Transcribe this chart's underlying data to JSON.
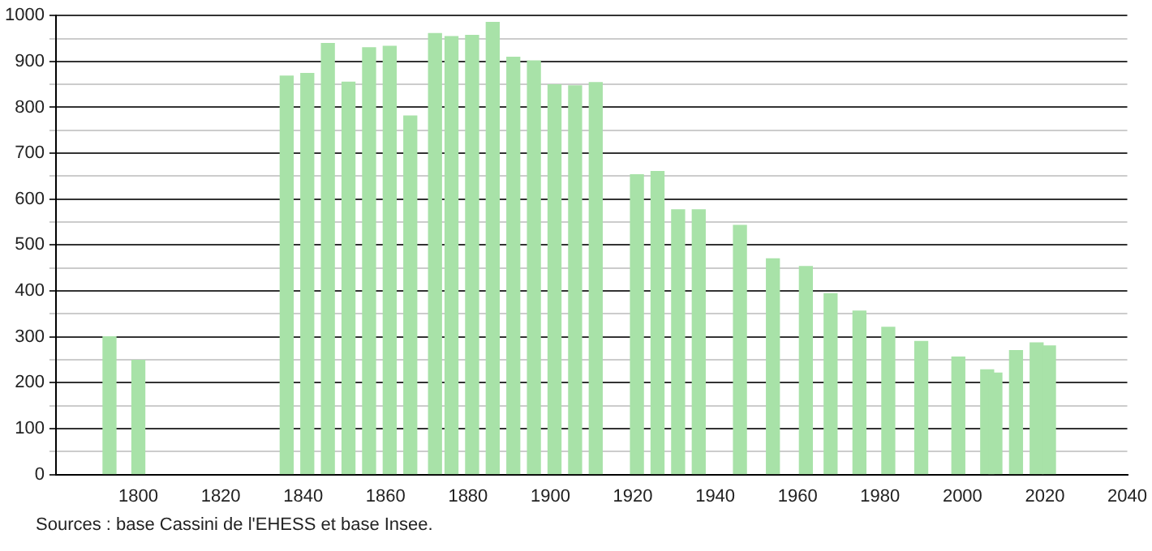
{
  "chart_data": {
    "type": "bar",
    "x": [
      1793,
      1800,
      1836,
      1841,
      1846,
      1851,
      1856,
      1861,
      1866,
      1872,
      1876,
      1881,
      1886,
      1891,
      1896,
      1901,
      1906,
      1911,
      1921,
      1926,
      1931,
      1936,
      1946,
      1954,
      1962,
      1968,
      1975,
      1982,
      1990,
      1999,
      2006,
      2008,
      2013,
      2018,
      2021
    ],
    "values": [
      300,
      249,
      868,
      874,
      939,
      855,
      930,
      933,
      781,
      961,
      954,
      957,
      985,
      909,
      901,
      849,
      847,
      854,
      653,
      660,
      577,
      577,
      543,
      470,
      453,
      394,
      356,
      321,
      290,
      256,
      228,
      221,
      270,
      287,
      280
    ],
    "color": "#a8e2a8",
    "xlim": [
      1780,
      2040
    ],
    "xticks": [
      1800,
      1820,
      1840,
      1860,
      1880,
      1900,
      1920,
      1940,
      1960,
      1980,
      2000,
      2020,
      2040
    ],
    "ylim": [
      0,
      1000
    ],
    "yticks": [
      0,
      {
        "value": 50,
        "label": null
      },
      100,
      {
        "value": 150,
        "label": null
      },
      200,
      {
        "value": 250,
        "label": null
      },
      300,
      {
        "value": 350,
        "label": null
      },
      400,
      {
        "value": 450,
        "label": null
      },
      500,
      {
        "value": 550,
        "label": null
      },
      600,
      {
        "value": 650,
        "label": null
      },
      700,
      {
        "value": 750,
        "label": null
      },
      800,
      {
        "value": 850,
        "label": null
      },
      900,
      {
        "value": 950,
        "label": null
      },
      1000
    ],
    "grid": "y",
    "legend": false,
    "annotations": [
      "Sources : base Cassini de l'EHESS et base Insee."
    ]
  }
}
